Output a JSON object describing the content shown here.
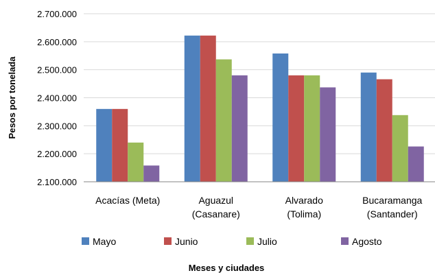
{
  "chart_data": {
    "type": "bar",
    "title": "",
    "xlabel": "Meses y ciudades",
    "ylabel": "Pesos por tonelada",
    "ylim": [
      2100000,
      2700000
    ],
    "yticks": [
      2100000,
      2200000,
      2300000,
      2400000,
      2500000,
      2600000,
      2700000
    ],
    "ytick_labels": [
      "2.100.000",
      "2.200.000",
      "2.300.000",
      "2.400.000",
      "2.500.000",
      "2.600.000",
      "2.700.000"
    ],
    "grid": true,
    "legend_position": "bottom",
    "categories": [
      [
        "Acacías (Meta)"
      ],
      [
        "Aguazul",
        "(Casanare)"
      ],
      [
        "Alvarado",
        "(Tolima)"
      ],
      [
        "Bucaramanga",
        "(Santander)"
      ]
    ],
    "series": [
      {
        "name": "Mayo",
        "color": "#4F81BD",
        "values": [
          2360000,
          2622000,
          2558000,
          2490000
        ]
      },
      {
        "name": "Junio",
        "color": "#C0504D",
        "values": [
          2360000,
          2622000,
          2480000,
          2466000
        ]
      },
      {
        "name": "Julio",
        "color": "#9BBB59",
        "values": [
          2240000,
          2537000,
          2480000,
          2338000
        ]
      },
      {
        "name": "Agosto",
        "color": "#8064A2",
        "values": [
          2158000,
          2480000,
          2437000,
          2226000
        ]
      }
    ]
  }
}
